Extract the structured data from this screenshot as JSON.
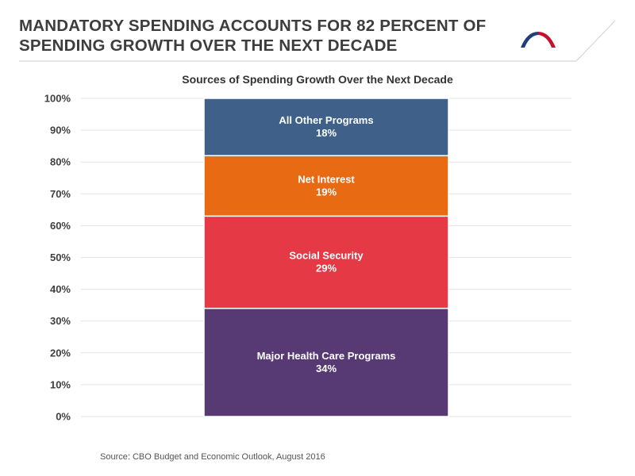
{
  "header": {
    "title_line1": "MANDATORY SPENDING ACCOUNTS FOR 82 PERCENT OF",
    "title_line2": "SPENDING GROWTH OVER THE NEXT DECADE"
  },
  "logo": {
    "icon": "arch-logo-icon",
    "colors": [
      "#1f3f7a",
      "#c8102e"
    ]
  },
  "footer": {
    "source": "Source: CBO Budget and Economic Outlook, August 2016"
  },
  "chart_data": {
    "type": "bar",
    "stacked": true,
    "title": "Sources of Spending Growth Over the Next Decade",
    "xlabel": "",
    "ylabel": "",
    "ylim": [
      0,
      100
    ],
    "yticks": [
      "0%",
      "10%",
      "20%",
      "30%",
      "40%",
      "50%",
      "60%",
      "70%",
      "80%",
      "90%",
      "100%"
    ],
    "grid": true,
    "legend": "none",
    "categories": [
      ""
    ],
    "series": [
      {
        "name": "Major Health Care Programs",
        "values": [
          34
        ],
        "label": "34%",
        "color": "#573a73"
      },
      {
        "name": "Social Security",
        "values": [
          29
        ],
        "label": "29%",
        "color": "#e63946"
      },
      {
        "name": "Net Interest",
        "values": [
          19
        ],
        "label": "19%",
        "color": "#e86a12"
      },
      {
        "name": "All Other Programs",
        "values": [
          18
        ],
        "label": "18%",
        "color": "#3f6089"
      }
    ]
  }
}
